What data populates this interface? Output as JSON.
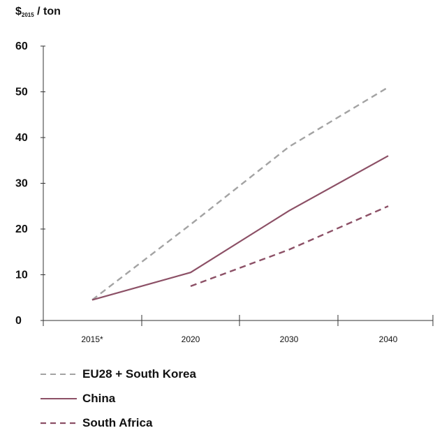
{
  "chart_data": {
    "type": "line",
    "ylabel_prefix": "$",
    "ylabel_sub": "2015",
    "ylabel_suffix": " / ton",
    "categories": [
      "2015*",
      "2020",
      "2030",
      "2040"
    ],
    "ylim": [
      0,
      60
    ],
    "yticks": [
      0,
      10,
      20,
      30,
      40,
      50,
      60
    ],
    "grid": false,
    "legend_position": "bottom-left",
    "series": [
      {
        "name": "EU28 + South Korea",
        "color": "#a3a3a3",
        "style": "dashed",
        "points": [
          [
            "2015*",
            4.5
          ],
          [
            "2020",
            21
          ],
          [
            "2030",
            38
          ],
          [
            "2040",
            51
          ]
        ]
      },
      {
        "name": "China",
        "color": "#8c5066",
        "style": "solid",
        "points": [
          [
            "2015*",
            4.5
          ],
          [
            "2020",
            10.5
          ],
          [
            "2030",
            24
          ],
          [
            "2040",
            36
          ]
        ]
      },
      {
        "name": "South Africa",
        "color": "#8c5066",
        "style": "dashed",
        "points": [
          [
            "2020",
            7.5
          ],
          [
            "2030",
            15.5
          ],
          [
            "2040",
            25
          ]
        ]
      }
    ]
  }
}
